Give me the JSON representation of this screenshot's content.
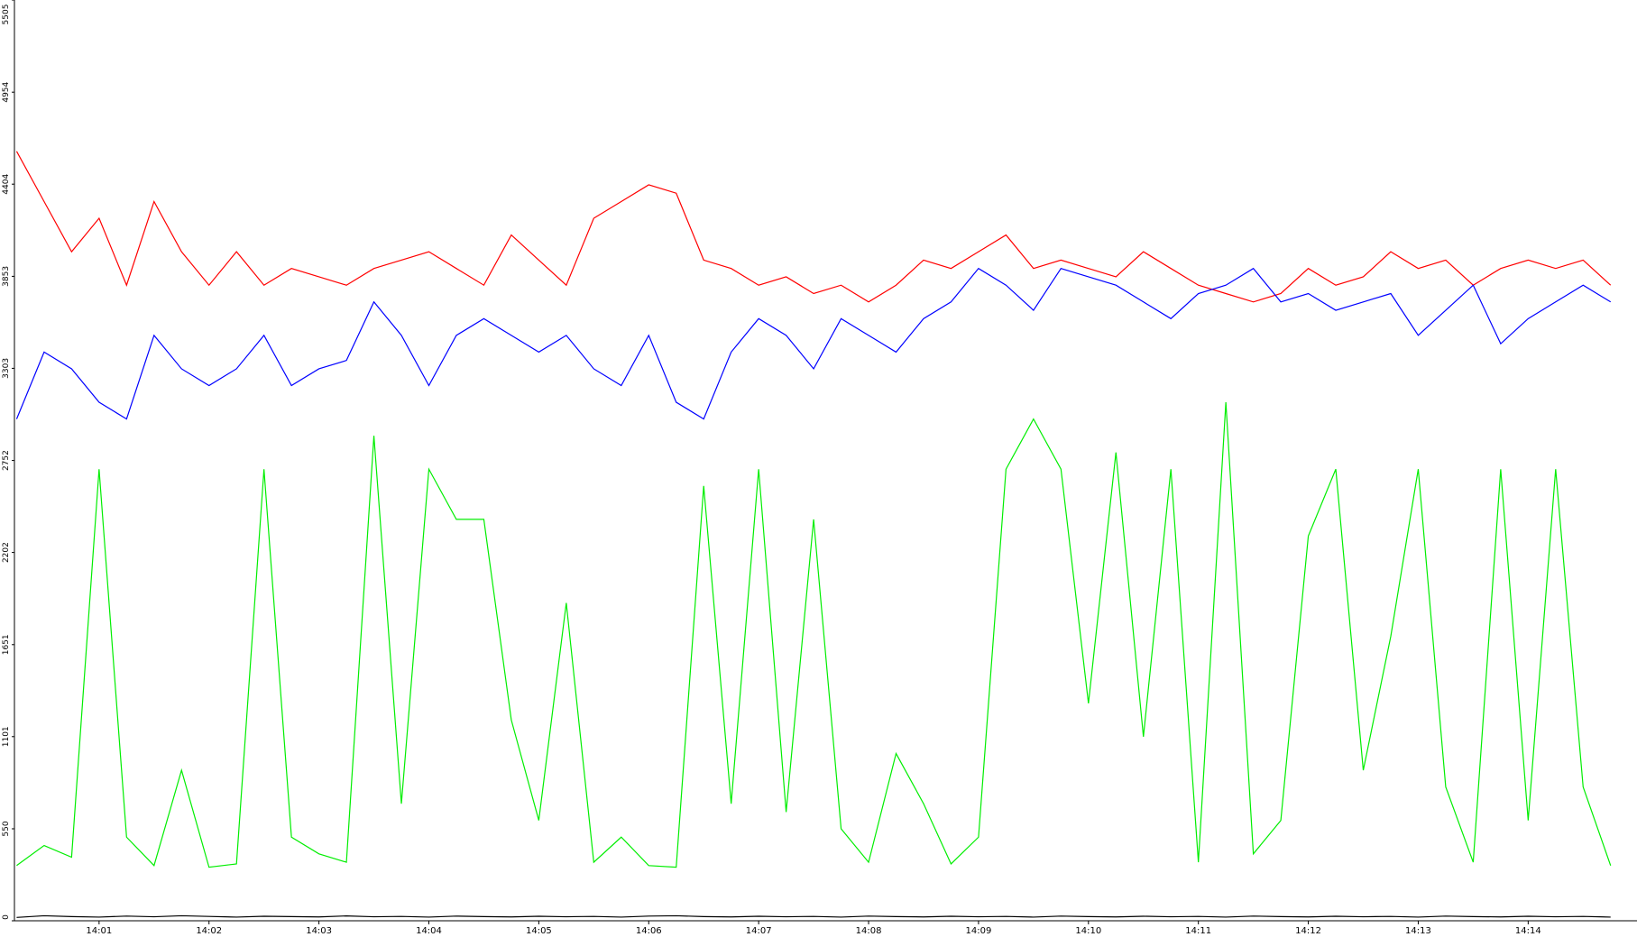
{
  "chart_data": {
    "type": "line",
    "x": [
      0.25,
      0.5,
      0.75,
      1,
      1.25,
      1.5,
      1.75,
      2,
      2.25,
      2.5,
      2.75,
      3,
      3.25,
      3.5,
      3.75,
      4,
      4.25,
      4.5,
      4.75,
      5,
      5.25,
      5.5,
      5.75,
      6,
      6.25,
      6.5,
      6.75,
      7,
      7.25,
      7.5,
      7.75,
      8,
      8.25,
      8.5,
      8.75,
      9,
      9.25,
      9.5,
      9.75,
      10,
      10.25,
      10.5,
      10.75,
      11,
      11.25,
      11.5,
      11.75,
      12,
      12.25,
      12.5,
      12.75,
      13,
      13.25,
      13.5,
      13.75,
      14,
      14.25,
      14.5,
      14.75
    ],
    "series": [
      {
        "color": "#ff0000",
        "values": [
          4600,
          4300,
          4000,
          4200,
          3800,
          4300,
          4000,
          3800,
          4000,
          3800,
          3900,
          3850,
          3800,
          3900,
          3950,
          4000,
          3900,
          3800,
          4100,
          3950,
          3800,
          4200,
          4300,
          4400,
          4350,
          3950,
          3900,
          3800,
          3850,
          3750,
          3800,
          3700,
          3800,
          3950,
          3900,
          4000,
          4100,
          3900,
          3950,
          3900,
          3850,
          4000,
          3900,
          3800,
          3750,
          3700,
          3750,
          3900,
          3800,
          3850,
          4000,
          3900,
          3950,
          3800,
          3900,
          3950,
          3900,
          3950,
          3800
        ]
      },
      {
        "color": "#0000ff",
        "values": [
          3000,
          3400,
          3300,
          3100,
          3000,
          3500,
          3300,
          3200,
          3300,
          3500,
          3200,
          3300,
          3350,
          3700,
          3500,
          3200,
          3500,
          3600,
          3500,
          3400,
          3500,
          3300,
          3200,
          3500,
          3100,
          3000,
          3400,
          3600,
          3500,
          3300,
          3600,
          3500,
          3400,
          3600,
          3700,
          3900,
          3800,
          3650,
          3900,
          3850,
          3800,
          3700,
          3600,
          3750,
          3800,
          3900,
          3700,
          3750,
          3650,
          3700,
          3750,
          3500,
          3650,
          3800,
          3450,
          3600,
          3700,
          3800,
          3700
        ]
      },
      {
        "color": "#00ee00",
        "values": [
          330,
          450,
          380,
          2700,
          500,
          330,
          900,
          320,
          340,
          2700,
          500,
          400,
          350,
          2900,
          700,
          2700,
          2400,
          2400,
          1200,
          600,
          1900,
          350,
          500,
          330,
          320,
          2600,
          700,
          2700,
          650,
          2400,
          550,
          350,
          1000,
          700,
          340,
          500,
          2700,
          3000,
          2700,
          1300,
          2800,
          1100,
          2700,
          350,
          3100,
          400,
          600,
          2300,
          2700,
          900,
          1700,
          2700,
          800,
          350,
          2700,
          600,
          2700,
          800,
          330
        ]
      },
      {
        "color": "#000000",
        "values": [
          20,
          30,
          25,
          22,
          28,
          24,
          30,
          26,
          22,
          27,
          25,
          23,
          29,
          24,
          26,
          22,
          28,
          25,
          23,
          27,
          24,
          26,
          22,
          28,
          30,
          25,
          23,
          27,
          24,
          26,
          22,
          28,
          25,
          23,
          27,
          24,
          26,
          22,
          28,
          25,
          23,
          27,
          24,
          26,
          22,
          28,
          25,
          23,
          27,
          24,
          26,
          22,
          28,
          25,
          23,
          27,
          24,
          26,
          22
        ]
      }
    ],
    "xlim": [
      0.23,
      14.99
    ],
    "xticks": [
      {
        "value": 1,
        "label": "14:01"
      },
      {
        "value": 2,
        "label": "14:02"
      },
      {
        "value": 3,
        "label": "14:03"
      },
      {
        "value": 4,
        "label": "14:04"
      },
      {
        "value": 5,
        "label": "14:05"
      },
      {
        "value": 6,
        "label": "14:06"
      },
      {
        "value": 7,
        "label": "14:07"
      },
      {
        "value": 8,
        "label": "14:08"
      },
      {
        "value": 9,
        "label": "14:09"
      },
      {
        "value": 10,
        "label": "14:10"
      },
      {
        "value": 11,
        "label": "14:11"
      },
      {
        "value": 12,
        "label": "14:12"
      },
      {
        "value": 13,
        "label": "14:13"
      },
      {
        "value": 14,
        "label": "14:14"
      }
    ],
    "ylim": [
      0,
      5505
    ],
    "yticks": [
      0,
      550,
      1101,
      1651,
      2202,
      2752,
      3303,
      3853,
      4404,
      4954,
      5505
    ]
  }
}
